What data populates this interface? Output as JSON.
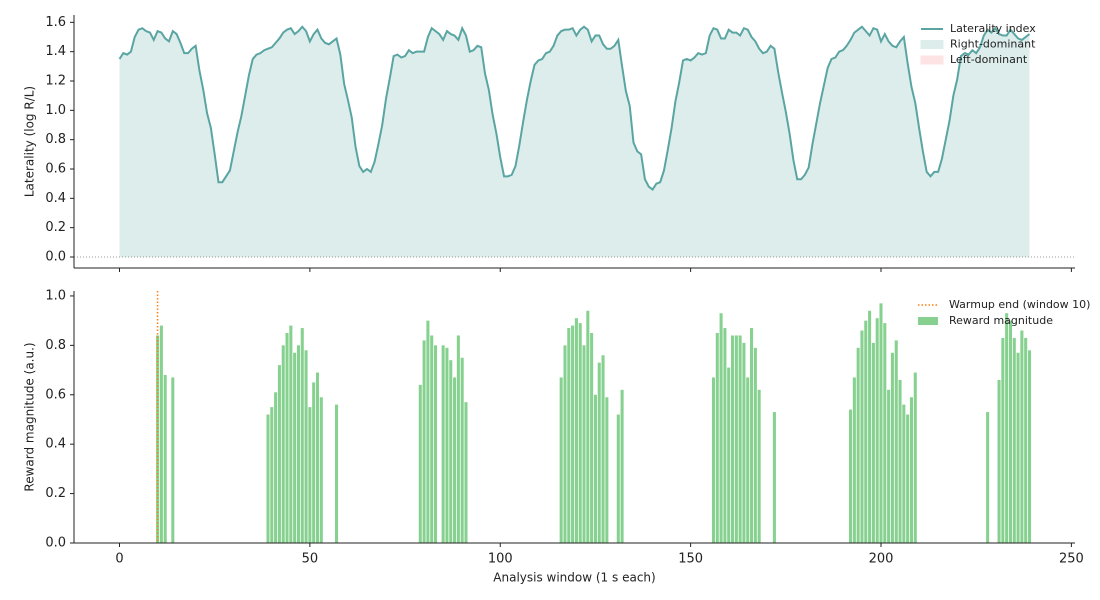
{
  "chart_data": [
    {
      "type": "area",
      "ylabel": "Laterality  (log R/L)",
      "x": [
        0,
        1,
        2,
        3,
        4,
        5,
        6,
        7,
        8,
        9,
        10,
        11,
        12,
        13,
        14,
        15,
        16,
        17,
        18,
        19,
        20,
        21,
        22,
        23,
        24,
        25,
        26,
        27,
        28,
        29,
        30,
        31,
        32,
        33,
        34,
        35,
        36,
        37,
        38,
        39,
        40,
        41,
        42,
        43,
        44,
        45,
        46,
        47,
        48,
        49,
        50,
        51,
        52,
        53,
        54,
        55,
        56,
        57,
        58,
        59,
        60,
        61,
        62,
        63,
        64,
        65,
        66,
        67,
        68,
        69,
        70,
        71,
        72,
        73,
        74,
        75,
        76,
        77,
        78,
        79,
        80,
        81,
        82,
        83,
        84,
        85,
        86,
        87,
        88,
        89,
        90,
        91,
        92,
        93,
        94,
        95,
        96,
        97,
        98,
        99,
        100,
        101,
        102,
        103,
        104,
        105,
        106,
        107,
        108,
        109,
        110,
        111,
        112,
        113,
        114,
        115,
        116,
        117,
        118,
        119,
        120,
        121,
        122,
        123,
        124,
        125,
        126,
        127,
        128,
        129,
        130,
        131,
        132,
        133,
        134,
        135,
        136,
        137,
        138,
        139,
        140,
        141,
        142,
        143,
        144,
        145,
        146,
        147,
        148,
        149,
        150,
        151,
        152,
        153,
        154,
        155,
        156,
        157,
        158,
        159,
        160,
        161,
        162,
        163,
        164,
        165,
        166,
        167,
        168,
        169,
        170,
        171,
        172,
        173,
        174,
        175,
        176,
        177,
        178,
        179,
        180,
        181,
        182,
        183,
        184,
        185,
        186,
        187,
        188,
        189,
        190,
        191,
        192,
        193,
        194,
        195,
        196,
        197,
        198,
        199,
        200,
        201,
        202,
        203,
        204,
        205,
        206,
        207,
        208,
        209,
        210,
        211,
        212,
        213,
        214,
        215,
        216,
        217,
        218,
        219,
        220,
        221,
        222,
        223,
        224,
        225,
        226,
        227,
        228,
        229,
        230,
        231,
        232,
        233,
        234,
        235,
        236,
        237,
        238,
        239
      ],
      "series": [
        {
          "name": "Laterality index",
          "color": "#5aa5a2",
          "values": [
            1.35,
            1.39,
            1.38,
            1.4,
            1.5,
            1.55,
            1.56,
            1.54,
            1.53,
            1.48,
            1.54,
            1.53,
            1.49,
            1.47,
            1.54,
            1.52,
            1.46,
            1.39,
            1.39,
            1.42,
            1.44,
            1.27,
            1.14,
            0.98,
            0.88,
            0.7,
            0.51,
            0.51,
            0.55,
            0.59,
            0.72,
            0.85,
            0.96,
            1.1,
            1.24,
            1.35,
            1.38,
            1.39,
            1.41,
            1.42,
            1.43,
            1.46,
            1.49,
            1.53,
            1.55,
            1.56,
            1.52,
            1.54,
            1.57,
            1.54,
            1.47,
            1.52,
            1.55,
            1.49,
            1.46,
            1.45,
            1.47,
            1.49,
            1.38,
            1.18,
            1.07,
            0.95,
            0.75,
            0.62,
            0.58,
            0.6,
            0.58,
            0.65,
            0.77,
            0.9,
            1.08,
            1.22,
            1.37,
            1.38,
            1.36,
            1.37,
            1.41,
            1.39,
            1.4,
            1.4,
            1.4,
            1.5,
            1.56,
            1.54,
            1.52,
            1.48,
            1.54,
            1.52,
            1.51,
            1.48,
            1.56,
            1.51,
            1.4,
            1.41,
            1.44,
            1.43,
            1.25,
            1.14,
            0.97,
            0.84,
            0.68,
            0.55,
            0.55,
            0.56,
            0.62,
            0.76,
            0.92,
            1.07,
            1.2,
            1.31,
            1.34,
            1.35,
            1.39,
            1.4,
            1.44,
            1.51,
            1.54,
            1.55,
            1.55,
            1.56,
            1.51,
            1.55,
            1.57,
            1.55,
            1.47,
            1.51,
            1.51,
            1.45,
            1.42,
            1.42,
            1.44,
            1.48,
            1.3,
            1.13,
            1.03,
            0.78,
            0.72,
            0.7,
            0.53,
            0.48,
            0.46,
            0.5,
            0.51,
            0.59,
            0.73,
            0.88,
            1.06,
            1.19,
            1.34,
            1.35,
            1.34,
            1.36,
            1.39,
            1.38,
            1.39,
            1.51,
            1.56,
            1.55,
            1.49,
            1.49,
            1.55,
            1.53,
            1.53,
            1.51,
            1.56,
            1.55,
            1.5,
            1.47,
            1.42,
            1.39,
            1.4,
            1.44,
            1.42,
            1.26,
            1.12,
            0.99,
            0.84,
            0.66,
            0.53,
            0.53,
            0.56,
            0.61,
            0.77,
            0.91,
            1.05,
            1.17,
            1.29,
            1.35,
            1.36,
            1.4,
            1.41,
            1.44,
            1.48,
            1.53,
            1.55,
            1.57,
            1.54,
            1.51,
            1.56,
            1.55,
            1.47,
            1.52,
            1.47,
            1.44,
            1.43,
            1.47,
            1.5,
            1.32,
            1.16,
            1.05,
            0.88,
            0.72,
            0.58,
            0.55,
            0.58,
            0.58,
            0.67,
            0.8,
            0.93,
            1.1,
            1.21,
            1.37,
            1.39,
            1.38,
            1.41,
            1.39,
            1.43,
            1.51,
            1.55,
            1.53,
            1.56,
            1.52,
            1.51,
            1.51,
            1.55,
            1.52,
            1.49,
            1.48,
            1.5,
            1.52
          ]
        }
      ],
      "fills": [
        {
          "name": "Right-dominant",
          "color": "#dcedec"
        },
        {
          "name": "Left-dominant",
          "color": "#fde3e3"
        }
      ],
      "hline": 0,
      "xlim": [
        -11.95,
        250.95
      ],
      "xticks": [
        0,
        50,
        100,
        150,
        200,
        250
      ],
      "ylim": [
        -0.075,
        1.65
      ],
      "yticks": [
        {
          "value": 0,
          "label": "0.0"
        },
        0.2,
        0.4,
        0.6,
        0.8,
        {
          "value": 1,
          "label": "1.0"
        },
        1.2,
        1.4,
        1.6
      ],
      "legend": "upper right"
    },
    {
      "type": "bar",
      "xlabel": "Analysis window (1 s each)",
      "ylabel": "Reward magnitude  (a.u.)",
      "x": [
        10,
        11,
        12,
        14,
        39,
        40,
        41,
        42,
        43,
        44,
        45,
        46,
        47,
        48,
        49,
        50,
        51,
        52,
        53,
        57,
        79,
        80,
        81,
        82,
        83,
        85,
        86,
        87,
        88,
        89,
        90,
        91,
        116,
        117,
        118,
        119,
        120,
        121,
        122,
        123,
        124,
        125,
        126,
        127,
        128,
        131,
        132,
        156,
        157,
        158,
        159,
        160,
        161,
        162,
        163,
        164,
        165,
        166,
        167,
        168,
        172,
        192,
        193,
        194,
        195,
        196,
        197,
        198,
        199,
        200,
        201,
        202,
        203,
        204,
        205,
        206,
        207,
        208,
        209,
        228,
        231,
        232,
        233,
        234,
        235,
        236,
        237,
        238,
        239
      ],
      "series": [
        {
          "name": "Reward magnitude",
          "color": "#86d18f",
          "values": [
            0.84,
            0.88,
            0.68,
            0.67,
            0.52,
            0.55,
            0.61,
            0.72,
            0.8,
            0.85,
            0.88,
            0.77,
            0.8,
            0.87,
            0.78,
            0.55,
            0.65,
            0.69,
            0.59,
            0.56,
            0.64,
            0.82,
            0.9,
            0.84,
            0.8,
            0.8,
            0.79,
            0.74,
            0.67,
            0.84,
            0.75,
            0.57,
            0.67,
            0.8,
            0.87,
            0.88,
            0.91,
            0.89,
            0.8,
            0.94,
            0.85,
            0.6,
            0.73,
            0.76,
            0.59,
            0.52,
            0.62,
            0.67,
            0.85,
            0.93,
            0.87,
            0.71,
            0.84,
            0.84,
            0.84,
            0.81,
            0.67,
            0.87,
            0.79,
            0.62,
            0.53,
            0.54,
            0.67,
            0.79,
            0.86,
            0.9,
            0.94,
            0.81,
            0.91,
            0.97,
            0.89,
            0.62,
            0.77,
            0.82,
            0.66,
            0.56,
            0.52,
            0.59,
            0.69,
            0.53,
            0.66,
            0.83,
            0.93,
            0.9,
            0.83,
            0.77,
            0.86,
            0.83,
            0.78
          ]
        }
      ],
      "vline": {
        "x": 10,
        "name": "Warmup end (window 10)",
        "color": "#ff7f0e"
      },
      "xlim": [
        -11.95,
        250.95
      ],
      "xticks": [
        0,
        50,
        100,
        150,
        200,
        250
      ],
      "ylim": [
        0,
        1.02
      ],
      "yticks": [
        {
          "value": 0,
          "label": "0.0"
        },
        0.2,
        0.4,
        0.6,
        0.8,
        {
          "value": 1,
          "label": "1.0"
        }
      ],
      "legend": "upper right"
    }
  ]
}
